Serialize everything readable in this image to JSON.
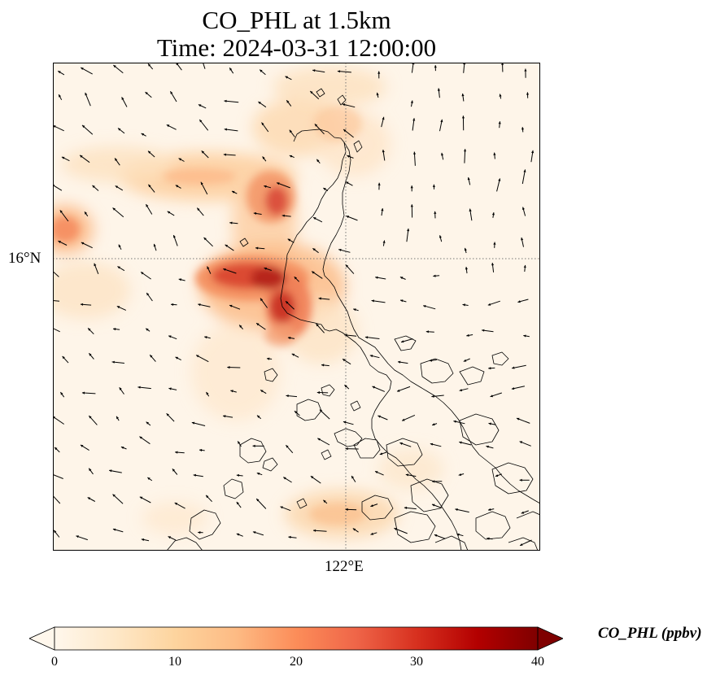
{
  "title": {
    "line1": "CO_PHL at 1.5km",
    "line2": "Time: 2024-03-31 12:00:00"
  },
  "map": {
    "variable": "CO_PHL",
    "level": "1.5km",
    "lat_gridline_label": "16°N",
    "lon_gridline_label": "122°E",
    "background_color": "#fef5e9",
    "coastline_color": "#000000",
    "gridline_style": "dotted"
  },
  "colorbar": {
    "label": "CO_PHL (ppbv)",
    "colormap": "OrRd",
    "min": 0,
    "max": 40,
    "ticks": [
      "0",
      "10",
      "20",
      "30",
      "40"
    ],
    "extend": "both"
  }
}
